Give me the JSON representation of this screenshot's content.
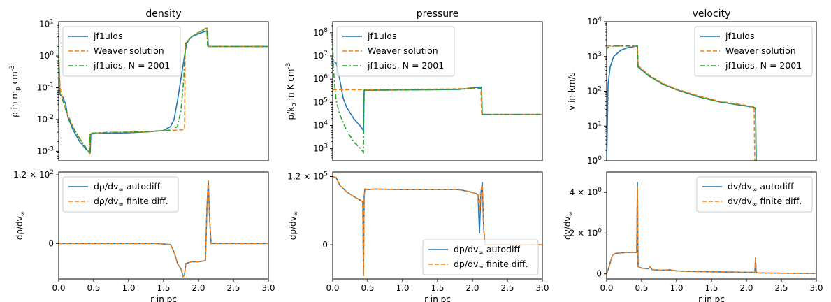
{
  "figure": {
    "background": "#ffffff"
  },
  "colors": {
    "blue": "#1f77b4",
    "orange": "#ff7f0e",
    "green": "#2ca02c"
  },
  "chart_data": [
    {
      "id": "density-top",
      "type": "line",
      "title": "density",
      "xlabel": "",
      "ylabel": "ρ in m_p cm^-3",
      "xlim": [
        0,
        3
      ],
      "ylim": [
        0.0005,
        12
      ],
      "yscale": "log",
      "yticks": [
        0.001,
        0.01,
        0.1,
        1,
        10
      ],
      "ytick_labels": [
        "10^-3",
        "10^-2",
        "10^-1",
        "10^0",
        "10^1"
      ],
      "legend": {
        "placement": "top-left",
        "entries": [
          "jf1uids",
          "Weaver solution",
          "jf1uids, N = 2001"
        ]
      },
      "series": [
        {
          "name": "jf1uids",
          "style": "solid",
          "color": "blue",
          "x": [
            0,
            0.02,
            0.06,
            0.1,
            0.13,
            0.2,
            0.3,
            0.4,
            0.45,
            0.46,
            0.7,
            1.0,
            1.3,
            1.5,
            1.6,
            1.65,
            1.7,
            1.75,
            1.8,
            1.83,
            1.9,
            2.0,
            2.1,
            2.13,
            2.14,
            3.0
          ],
          "y": [
            1.0,
            0.06,
            0.05,
            0.03,
            0.012,
            0.005,
            0.002,
            0.0011,
            0.0009,
            0.0035,
            0.0037,
            0.0038,
            0.0041,
            0.0045,
            0.006,
            0.01,
            0.04,
            0.2,
            1.0,
            2.5,
            4.0,
            5.0,
            6.0,
            6.0,
            2.0,
            2.0
          ]
        },
        {
          "name": "Weaver solution",
          "style": "dashed",
          "color": "orange",
          "x": [
            0,
            0.02,
            0.05,
            0.1,
            0.2,
            0.3,
            0.4,
            0.44,
            0.45,
            0.7,
            1.0,
            1.3,
            1.6,
            1.79,
            1.8,
            1.81,
            1.9,
            2.0,
            2.1,
            2.12,
            2.13,
            3.0
          ],
          "y": [
            1.0,
            0.1,
            0.05,
            0.02,
            0.006,
            0.0025,
            0.0012,
            0.00085,
            0.0037,
            0.0039,
            0.004,
            0.0042,
            0.0045,
            0.0048,
            0.005,
            2.5,
            4.0,
            5.5,
            7.5,
            8.0,
            2.0,
            2.0
          ]
        },
        {
          "name": "jf1uids, N = 2001",
          "style": "dashdot",
          "color": "green",
          "x": [
            0,
            0.01,
            0.05,
            0.1,
            0.2,
            0.3,
            0.4,
            0.44,
            0.45,
            0.7,
            1.0,
            1.3,
            1.6,
            1.7,
            1.75,
            1.79,
            1.8,
            1.82,
            1.9,
            2.0,
            2.1,
            2.12,
            2.13,
            3.0
          ],
          "y": [
            2.0,
            0.08,
            0.045,
            0.02,
            0.006,
            0.0025,
            0.0012,
            0.00085,
            0.0037,
            0.0039,
            0.004,
            0.0042,
            0.0046,
            0.006,
            0.02,
            0.2,
            0.8,
            2.5,
            4.0,
            5.5,
            7.0,
            7.5,
            2.0,
            2.0
          ]
        }
      ]
    },
    {
      "id": "pressure-top",
      "type": "line",
      "title": "pressure",
      "xlabel": "",
      "ylabel": "p/k_b in K cm^-3",
      "xlim": [
        0,
        3
      ],
      "ylim": [
        300,
        300000000
      ],
      "yscale": "log",
      "yticks": [
        1000,
        10000,
        100000,
        1000000,
        10000000,
        100000000
      ],
      "ytick_labels": [
        "10^3",
        "10^4",
        "10^5",
        "10^6",
        "10^7",
        "10^8"
      ],
      "legend": {
        "placement": "top-left",
        "entries": [
          "jf1uids",
          "Weaver solution",
          "jf1uids, N = 2001"
        ]
      },
      "series": [
        {
          "name": "jf1uids",
          "style": "solid",
          "color": "blue",
          "x": [
            0,
            0.05,
            0.1,
            0.15,
            0.2,
            0.3,
            0.4,
            0.44,
            0.45,
            0.46,
            1.0,
            1.5,
            1.8,
            2.1,
            2.13,
            2.14,
            3.0
          ],
          "y": [
            6000000,
            5000000,
            1000000,
            150000,
            60000,
            20000,
            9000,
            6000,
            300000,
            330000,
            340000,
            350000,
            360000,
            450000,
            450000,
            30000,
            30000
          ]
        },
        {
          "name": "Weaver solution",
          "style": "dashed",
          "color": "orange",
          "x": [
            0,
            0.44,
            0.45,
            1.0,
            1.5,
            1.8,
            2.1,
            2.12,
            2.13,
            3.0
          ],
          "y": [
            350000,
            350000,
            350000,
            360000,
            370000,
            380000,
            400000,
            400000,
            30000,
            30000
          ]
        },
        {
          "name": "jf1uids, N = 2001",
          "style": "dashdot",
          "color": "green",
          "x": [
            0,
            0.01,
            0.03,
            0.05,
            0.1,
            0.2,
            0.3,
            0.4,
            0.44,
            0.45,
            1.0,
            1.5,
            1.8,
            2.1,
            2.13,
            2.14,
            3.0
          ],
          "y": [
            40000000,
            3000000,
            500000,
            120000,
            30000,
            6000,
            2000,
            1000,
            700,
            330000,
            340000,
            350000,
            360000,
            400000,
            420000,
            30000,
            30000
          ]
        }
      ]
    },
    {
      "id": "velocity-top",
      "type": "line",
      "title": "velocity",
      "xlabel": "",
      "ylabel": "v in km/s",
      "xlim": [
        0,
        3
      ],
      "ylim": [
        1,
        10000
      ],
      "yscale": "log",
      "yticks": [
        1,
        10,
        100,
        1000,
        10000
      ],
      "ytick_labels": [
        "10^0",
        "10^1",
        "10^2",
        "10^3",
        "10^4"
      ],
      "legend": {
        "placement": "top-right",
        "entries": [
          "jf1uids",
          "Weaver solution",
          "jf1uids, N = 2001"
        ]
      },
      "series": [
        {
          "name": "jf1uids",
          "style": "solid",
          "color": "blue",
          "x": [
            0,
            0.01,
            0.02,
            0.05,
            0.1,
            0.2,
            0.3,
            0.44,
            0.45,
            0.6,
            0.8,
            1.0,
            1.3,
            1.6,
            1.9,
            2.1,
            2.13,
            2.14
          ],
          "y": [
            1,
            10,
            150,
            500,
            1000,
            1500,
            1800,
            2000,
            500,
            280,
            160,
            110,
            70,
            50,
            40,
            35,
            32,
            1
          ]
        },
        {
          "name": "Weaver solution",
          "style": "dashed",
          "color": "orange",
          "x": [
            0,
            0.3,
            0.44,
            0.45,
            0.6,
            0.8,
            1.0,
            1.3,
            1.6,
            1.9,
            2.1,
            2.11,
            2.12
          ],
          "y": [
            2000,
            2000,
            2000,
            550,
            300,
            170,
            115,
            75,
            52,
            42,
            36,
            30,
            1
          ]
        },
        {
          "name": "jf1uids, N = 2001",
          "style": "dashdot",
          "color": "green",
          "x": [
            0,
            0.01,
            0.05,
            0.1,
            0.3,
            0.44,
            0.45,
            0.6,
            0.8,
            1.0,
            1.3,
            1.6,
            1.9,
            2.1,
            2.13,
            2.14
          ],
          "y": [
            1500,
            1800,
            1900,
            2000,
            2000,
            2050,
            500,
            280,
            160,
            110,
            70,
            50,
            40,
            35,
            33,
            1
          ]
        }
      ]
    },
    {
      "id": "density-bottom",
      "type": "line",
      "title": "",
      "xlabel": "r in pc",
      "ylabel": "dρ/dv_∞",
      "xlim": [
        0,
        3
      ],
      "ylim": [
        -62,
        125
      ],
      "yscale": "linear",
      "xticks": [
        0,
        0.5,
        1.0,
        1.5,
        2.0,
        2.5,
        3.0
      ],
      "xtick_labels": [
        "0.0",
        "0.5",
        "1.0",
        "1.5",
        "2.0",
        "2.5",
        "3.0"
      ],
      "yticks": [
        0,
        120
      ],
      "ytick_labels": [
        "0",
        "1.2 × 10^2"
      ],
      "legend": {
        "placement": "top-left",
        "entries": [
          "dρ/dv_∞ autodiff",
          "dρ/dv_∞ finite diff."
        ]
      },
      "series": [
        {
          "name": "dρ/dv_∞ autodiff",
          "style": "solid",
          "color": "blue",
          "x": [
            0,
            1.4,
            1.6,
            1.65,
            1.7,
            1.75,
            1.78,
            1.8,
            1.82,
            1.9,
            2.0,
            2.1,
            2.12,
            2.14,
            2.16,
            2.18,
            3.0
          ],
          "y": [
            0,
            0,
            -2,
            -15,
            -35,
            -45,
            -58,
            -55,
            -35,
            -32,
            -32,
            -30,
            60,
            110,
            40,
            0,
            0
          ]
        },
        {
          "name": "dρ/dv_∞ finite diff.",
          "style": "dashed",
          "color": "orange",
          "x": [
            0,
            1.4,
            1.6,
            1.65,
            1.7,
            1.75,
            1.78,
            1.8,
            1.82,
            1.9,
            2.0,
            2.1,
            2.12,
            2.14,
            2.16,
            2.18,
            3.0
          ],
          "y": [
            0,
            0,
            -2,
            -15,
            -35,
            -45,
            -58,
            -55,
            -35,
            -32,
            -32,
            -30,
            60,
            110,
            40,
            0,
            0
          ]
        }
      ]
    },
    {
      "id": "pressure-bottom",
      "type": "line",
      "title": "",
      "xlabel": "r in pc",
      "ylabel": "dp/dv_∞",
      "xlim": [
        0,
        3
      ],
      "ylim": [
        -60000,
        128000
      ],
      "yscale": "linear",
      "xticks": [
        0,
        0.5,
        1.0,
        1.5,
        2.0,
        2.5,
        3.0
      ],
      "xtick_labels": [
        "0.0",
        "0.5",
        "1.0",
        "1.5",
        "2.0",
        "2.5",
        "3.0"
      ],
      "yticks": [
        0,
        120000
      ],
      "ytick_labels": [
        "0",
        "1.2 × 10^5"
      ],
      "legend": {
        "placement": "bottom-right",
        "entries": [
          "dp/dv_∞ autodiff",
          "dp/dv_∞ finite diff."
        ]
      },
      "series": [
        {
          "name": "dp/dv_∞ autodiff",
          "style": "solid",
          "color": "blue",
          "x": [
            0,
            0.05,
            0.1,
            0.2,
            0.3,
            0.4,
            0.43,
            0.44,
            0.45,
            0.46,
            0.5,
            0.6,
            1.0,
            1.5,
            1.8,
            1.9,
            2.0,
            2.05,
            2.08,
            2.1,
            2.12,
            2.14,
            2.16,
            2.18,
            3.0
          ],
          "y": [
            120000,
            118000,
            105000,
            93000,
            85000,
            78000,
            75000,
            -55000,
            85000,
            98000,
            97000,
            98000,
            97000,
            97000,
            97000,
            95000,
            92000,
            90000,
            88000,
            20000,
            90000,
            110000,
            30000,
            0,
            0
          ]
        },
        {
          "name": "dp/dv_∞ finite diff.",
          "style": "dashed",
          "color": "orange",
          "x": [
            0,
            0.05,
            0.1,
            0.2,
            0.3,
            0.4,
            0.43,
            0.44,
            0.45,
            0.46,
            0.5,
            0.6,
            1.0,
            1.5,
            1.8,
            1.9,
            2.0,
            2.05,
            2.08,
            2.1,
            2.12,
            2.14,
            2.16,
            2.18,
            3.0
          ],
          "y": [
            120000,
            118000,
            105000,
            93000,
            85000,
            78000,
            75000,
            -55000,
            85000,
            98000,
            97000,
            98000,
            97000,
            97000,
            97000,
            95000,
            92000,
            90000,
            88000,
            60000,
            95000,
            105000,
            30000,
            0,
            0
          ]
        }
      ]
    },
    {
      "id": "velocity-bottom",
      "type": "line",
      "title": "",
      "xlabel": "r in pc",
      "ylabel": "dv/dv_∞",
      "xlim": [
        0,
        3
      ],
      "ylim": [
        -0.25,
        5
      ],
      "yscale": "linear",
      "xticks": [
        0,
        0.5,
        1.0,
        1.5,
        2.0,
        2.5,
        3.0
      ],
      "xtick_labels": [
        "0.0",
        "0.5",
        "1.0",
        "1.5",
        "2.0",
        "2.5",
        "3.0"
      ],
      "yticks": [
        0,
        2,
        4
      ],
      "ytick_labels": [
        "0",
        "2 × 10^0",
        "4 × 10^0"
      ],
      "legend": {
        "placement": "top-right",
        "entries": [
          "dv/dv_∞ autodiff",
          "dv/dv_∞ finite diff."
        ]
      },
      "series": [
        {
          "name": "dv/dv_∞ autodiff",
          "style": "solid",
          "color": "blue",
          "x": [
            0,
            0.03,
            0.08,
            0.12,
            0.2,
            0.3,
            0.43,
            0.44,
            0.45,
            0.5,
            0.6,
            0.62,
            0.65,
            0.8,
            0.9,
            1.0,
            1.2,
            1.5,
            2.0,
            2.12,
            2.13,
            2.14,
            2.15,
            2.3,
            2.6,
            3.0
          ],
          "y": [
            0,
            0.3,
            0.9,
            1.0,
            1.03,
            1.05,
            1.05,
            4.5,
            0.35,
            0.28,
            0.25,
            0.35,
            0.2,
            0.18,
            0.2,
            0.14,
            0.12,
            0.1,
            0.08,
            0.08,
            0.8,
            0.08,
            0.05,
            0.04,
            0.03,
            0.02
          ]
        },
        {
          "name": "dv/dv_∞ finite diff.",
          "style": "dashed",
          "color": "orange",
          "x": [
            0,
            0.03,
            0.08,
            0.12,
            0.2,
            0.3,
            0.43,
            0.44,
            0.45,
            0.5,
            0.6,
            0.62,
            0.65,
            0.8,
            0.9,
            1.0,
            1.2,
            1.5,
            2.0,
            2.12,
            2.13,
            2.14,
            2.15,
            2.3,
            2.6,
            3.0
          ],
          "y": [
            0,
            0.3,
            0.9,
            1.0,
            1.03,
            1.05,
            1.05,
            4.3,
            0.35,
            0.28,
            0.25,
            0.35,
            0.2,
            0.18,
            0.2,
            0.14,
            0.12,
            0.1,
            0.08,
            0.08,
            0.75,
            0.08,
            0.05,
            0.04,
            0.03,
            0.02
          ]
        }
      ]
    }
  ]
}
